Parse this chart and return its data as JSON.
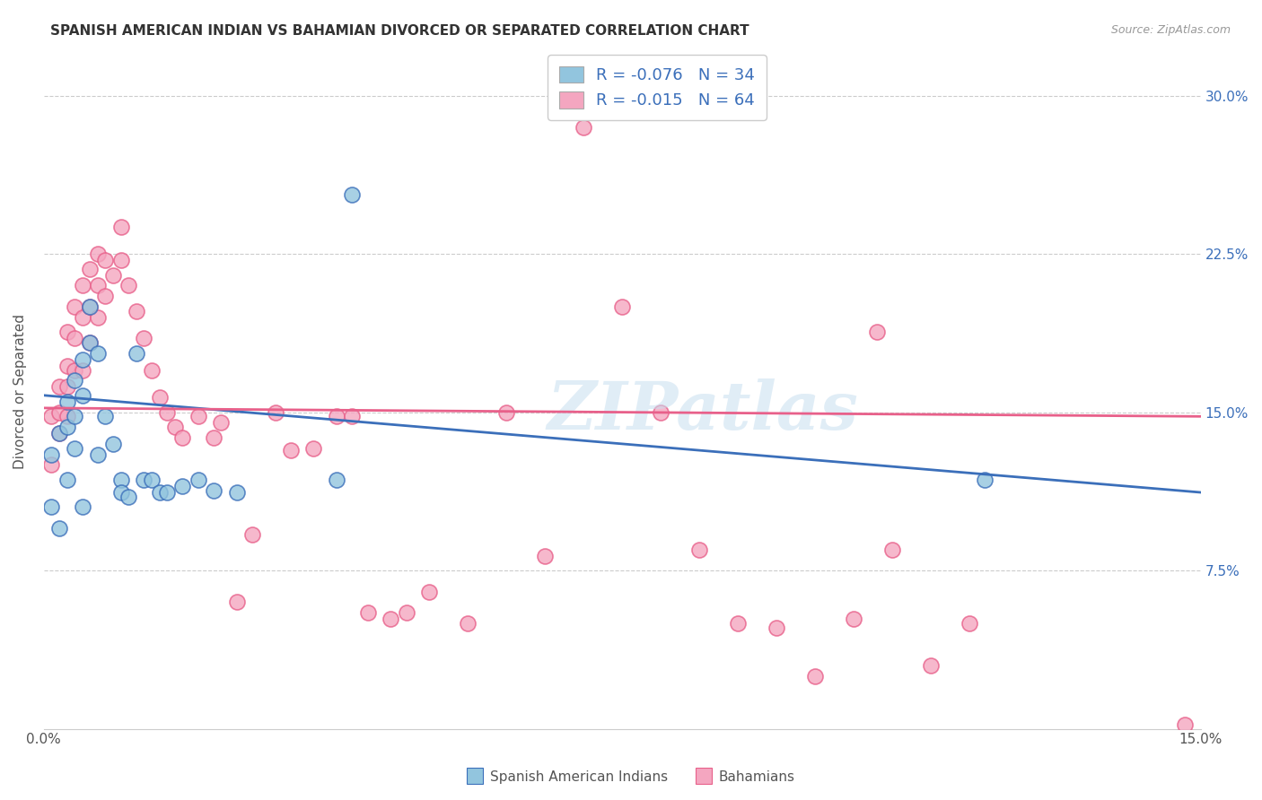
{
  "title": "SPANISH AMERICAN INDIAN VS BAHAMIAN DIVORCED OR SEPARATED CORRELATION CHART",
  "source": "Source: ZipAtlas.com",
  "ylabel": "Divorced or Separated",
  "ytick_labels": [
    "7.5%",
    "15.0%",
    "22.5%",
    "30.0%"
  ],
  "ytick_values": [
    0.075,
    0.15,
    0.225,
    0.3
  ],
  "xlim": [
    0.0,
    0.15
  ],
  "ylim": [
    0.0,
    0.32
  ],
  "legend_r_blue": "-0.076",
  "legend_n_blue": "34",
  "legend_r_pink": "-0.015",
  "legend_n_pink": "64",
  "blue_color": "#92c5de",
  "pink_color": "#f4a6c0",
  "blue_line_color": "#3b6fba",
  "pink_line_color": "#e8608a",
  "legend_text_color": "#3b6fba",
  "watermark": "ZIPatlas",
  "blue_trendline": [
    0.158,
    0.112
  ],
  "pink_trendline": [
    0.152,
    0.148
  ],
  "blue_scatter_x": [
    0.001,
    0.001,
    0.002,
    0.002,
    0.003,
    0.003,
    0.003,
    0.004,
    0.004,
    0.004,
    0.005,
    0.005,
    0.005,
    0.006,
    0.006,
    0.007,
    0.007,
    0.008,
    0.009,
    0.01,
    0.01,
    0.011,
    0.012,
    0.013,
    0.014,
    0.015,
    0.016,
    0.018,
    0.02,
    0.022,
    0.025,
    0.038,
    0.04,
    0.122
  ],
  "blue_scatter_y": [
    0.13,
    0.105,
    0.14,
    0.095,
    0.155,
    0.143,
    0.118,
    0.165,
    0.148,
    0.133,
    0.175,
    0.158,
    0.105,
    0.2,
    0.183,
    0.178,
    0.13,
    0.148,
    0.135,
    0.118,
    0.112,
    0.11,
    0.178,
    0.118,
    0.118,
    0.112,
    0.112,
    0.115,
    0.118,
    0.113,
    0.112,
    0.118,
    0.253,
    0.118
  ],
  "pink_scatter_x": [
    0.001,
    0.001,
    0.002,
    0.002,
    0.002,
    0.003,
    0.003,
    0.003,
    0.003,
    0.004,
    0.004,
    0.004,
    0.005,
    0.005,
    0.005,
    0.006,
    0.006,
    0.006,
    0.007,
    0.007,
    0.007,
    0.008,
    0.008,
    0.009,
    0.01,
    0.01,
    0.011,
    0.012,
    0.013,
    0.014,
    0.015,
    0.016,
    0.017,
    0.018,
    0.02,
    0.022,
    0.023,
    0.025,
    0.027,
    0.03,
    0.032,
    0.035,
    0.038,
    0.04,
    0.042,
    0.045,
    0.047,
    0.05,
    0.055,
    0.06,
    0.065,
    0.07,
    0.075,
    0.08,
    0.085,
    0.09,
    0.095,
    0.1,
    0.105,
    0.108,
    0.11,
    0.115,
    0.12,
    0.148
  ],
  "pink_scatter_y": [
    0.148,
    0.125,
    0.162,
    0.15,
    0.14,
    0.188,
    0.172,
    0.162,
    0.148,
    0.2,
    0.185,
    0.17,
    0.21,
    0.195,
    0.17,
    0.218,
    0.2,
    0.183,
    0.225,
    0.21,
    0.195,
    0.222,
    0.205,
    0.215,
    0.238,
    0.222,
    0.21,
    0.198,
    0.185,
    0.17,
    0.157,
    0.15,
    0.143,
    0.138,
    0.148,
    0.138,
    0.145,
    0.06,
    0.092,
    0.15,
    0.132,
    0.133,
    0.148,
    0.148,
    0.055,
    0.052,
    0.055,
    0.065,
    0.05,
    0.15,
    0.082,
    0.285,
    0.2,
    0.15,
    0.085,
    0.05,
    0.048,
    0.025,
    0.052,
    0.188,
    0.085,
    0.03,
    0.05,
    0.002
  ]
}
